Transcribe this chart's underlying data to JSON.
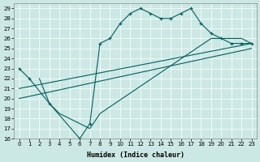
{
  "xlabel": "Humidex (Indice chaleur)",
  "background_color": "#cce8e4",
  "line_color": "#006060",
  "xlim": [
    -0.5,
    23.5
  ],
  "ylim": [
    16,
    29.5
  ],
  "yticks": [
    16,
    17,
    18,
    19,
    20,
    21,
    22,
    23,
    24,
    25,
    26,
    27,
    28,
    29
  ],
  "xticks": [
    0,
    1,
    2,
    3,
    4,
    5,
    6,
    7,
    8,
    9,
    10,
    11,
    12,
    13,
    14,
    15,
    16,
    17,
    18,
    19,
    20,
    21,
    22,
    23
  ],
  "line1_x": [
    0,
    1,
    3,
    6,
    7,
    8,
    9,
    10,
    11,
    12,
    13,
    14,
    15,
    16,
    17,
    18,
    19,
    20,
    21,
    22,
    23
  ],
  "line1_y": [
    23,
    22,
    19.5,
    16,
    17.5,
    25.5,
    26,
    27.5,
    28.5,
    29,
    28.5,
    28,
    28,
    28.5,
    29,
    27.5,
    26.5,
    26,
    25.5,
    25.5,
    25.5
  ],
  "line2_x": [
    0,
    23
  ],
  "line2_y": [
    21,
    25.5
  ],
  "line3_x": [
    0,
    23
  ],
  "line3_y": [
    20,
    25
  ],
  "line4_x": [
    2,
    3,
    4,
    5,
    6,
    7,
    8,
    19,
    20,
    21,
    22,
    23
  ],
  "line4_y": [
    22,
    19.5,
    18.5,
    18,
    17.5,
    17,
    18.5,
    26,
    26,
    26,
    26,
    25.5
  ]
}
